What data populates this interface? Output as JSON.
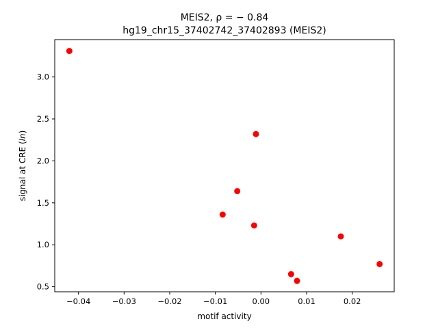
{
  "chart_data": {
    "type": "scatter",
    "title_line1": "MEIS2, ρ = − 0.84",
    "title_line2": "hg19_chr15_37402742_37402893 (MEIS2)",
    "xlabel": "motif activity",
    "ylabel_prefix": "signal at CRE (",
    "ylabel_italic": "ln",
    "ylabel_suffix": ")",
    "xlim": [
      -0.0452,
      0.0292
    ],
    "ylim": [
      0.44,
      3.445
    ],
    "x_ticks": [
      -0.04,
      -0.03,
      -0.02,
      -0.01,
      0.0,
      0.01,
      0.02
    ],
    "x_tick_labels": [
      "−0.04",
      "−0.03",
      "−0.02",
      "−0.01",
      "0.00",
      "0.01",
      "0.02"
    ],
    "y_ticks": [
      0.5,
      1.0,
      1.5,
      2.0,
      2.5,
      3.0
    ],
    "y_tick_labels": [
      "0.5",
      "1.0",
      "1.5",
      "2.0",
      "2.5",
      "3.0"
    ],
    "grid": false,
    "marker_color": "#ff0000",
    "points": [
      {
        "x": -0.042,
        "y": 3.31
      },
      {
        "x": -0.0011,
        "y": 2.32
      },
      {
        "x": -0.0052,
        "y": 1.64
      },
      {
        "x": -0.0084,
        "y": 1.36
      },
      {
        "x": -0.0015,
        "y": 1.23
      },
      {
        "x": 0.0175,
        "y": 1.1
      },
      {
        "x": 0.026,
        "y": 0.77
      },
      {
        "x": 0.0066,
        "y": 0.65
      },
      {
        "x": 0.0079,
        "y": 0.57
      }
    ]
  }
}
